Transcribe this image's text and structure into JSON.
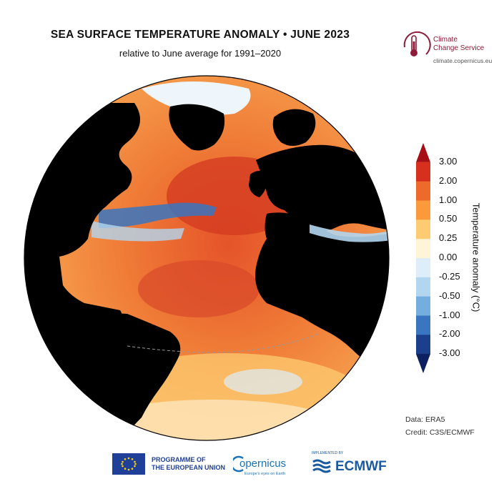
{
  "title": "SEA SURFACE TEMPERATURE ANOMALY • JUNE 2023",
  "subtitle": "relative to June average for 1991–2020",
  "c3s": {
    "line1": "Climate",
    "line2": "Change Service",
    "url": "climate.copernicus.eu"
  },
  "legend": {
    "title": "Temperature anomaly (°C)",
    "ticks": [
      "3.00",
      "2.00",
      "1.00",
      "0.50",
      "0.25",
      "0.00",
      "-0.25",
      "-0.50",
      "-1.00",
      "-2.00",
      "-3.00"
    ],
    "colors": [
      "#a50f15",
      "#d7301f",
      "#ef6a2a",
      "#fb9a3a",
      "#fdcb72",
      "#fff4d8",
      "#ddeefa",
      "#b3d6f0",
      "#73aede",
      "#3a76c0",
      "#1c3f8c",
      "#0d2160"
    ]
  },
  "credits": {
    "data": "Data: ERA5",
    "credit": "Credit: C3S/ECMWF"
  },
  "footer": {
    "eu_line1": "PROGRAMME OF",
    "eu_line2": "THE EUROPEAN UNION",
    "copernicus": "opernicus",
    "copernicus_sub": "Europe's eyes on Earth",
    "ecmwf_small": "IMPLEMENTED BY",
    "ecmwf": "ECMWF"
  }
}
